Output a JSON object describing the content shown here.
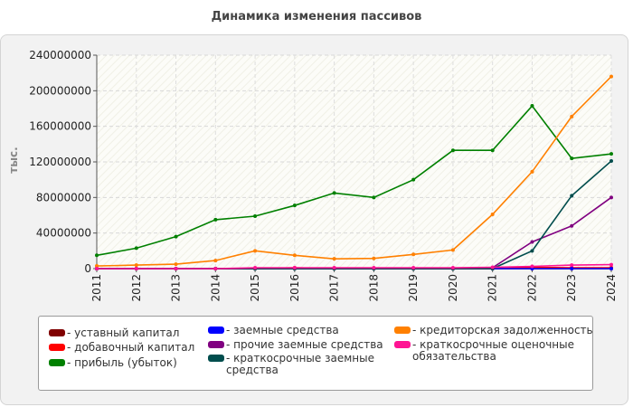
{
  "chart_data": {
    "type": "line",
    "title": "Динамика изменения пассивов",
    "ylabel": "тыс.",
    "ylim": [
      0,
      240000000
    ],
    "yticks": [
      "0",
      "40000000",
      "80000000",
      "120000000",
      "160000000",
      "200000000",
      "240000000"
    ],
    "x": [
      "2011",
      "2012",
      "2013",
      "2014",
      "2015",
      "2016",
      "2017",
      "2018",
      "2019",
      "2020",
      "2021",
      "2022",
      "2023",
      "2024"
    ],
    "grid": true,
    "legend_position": "bottom",
    "series": [
      {
        "name": "- уставный капитал",
        "color": "#800000",
        "values": [
          0,
          0,
          0,
          0,
          0,
          0,
          0,
          0,
          0,
          0,
          0,
          0,
          0,
          0
        ]
      },
      {
        "name": "- добавочный капитал",
        "color": "#ff0000",
        "values": [
          0,
          0,
          0,
          0,
          0,
          1000000,
          0,
          0,
          0,
          0,
          0,
          1500000,
          1000000,
          1000000
        ]
      },
      {
        "name": "- прибыль (убыток)",
        "color": "#008000",
        "values": [
          15000000,
          23000000,
          36000000,
          55000000,
          59000000,
          71000000,
          85000000,
          80000000,
          100000000,
          133000000,
          133000000,
          183000000,
          124000000,
          129000000
        ]
      },
      {
        "name": "- заемные средства",
        "color": "#0000ff",
        "values": [
          0,
          0,
          0,
          0,
          0,
          0,
          0,
          0,
          0,
          0,
          0,
          0,
          0,
          0
        ]
      },
      {
        "name": "- прочие заемные средства",
        "color": "#800080",
        "values": [
          0,
          0,
          0,
          0,
          0,
          0,
          0,
          0,
          0,
          0,
          1000000,
          30000000,
          48000000,
          80000000
        ]
      },
      {
        "name": "- краткосрочные заемные средства",
        "color": "#004d4d",
        "values": [
          0,
          0,
          0,
          0,
          0,
          0,
          0,
          0,
          0,
          0,
          0,
          20000000,
          82000000,
          121000000
        ]
      },
      {
        "name": "- кредиторская задолженность",
        "color": "#ff8000",
        "values": [
          3000000,
          4000000,
          5000000,
          9000000,
          20000000,
          15000000,
          11000000,
          11500000,
          16000000,
          21000000,
          61000000,
          109000000,
          171000000,
          216000000
        ]
      },
      {
        "name": "- краткосрочные оценочные обязательства",
        "color": "#ff1493",
        "values": [
          0,
          0,
          0,
          0,
          1000000,
          1000000,
          1000000,
          1000000,
          1000000,
          1000000,
          1500000,
          2500000,
          4000000,
          4500000
        ]
      }
    ]
  }
}
